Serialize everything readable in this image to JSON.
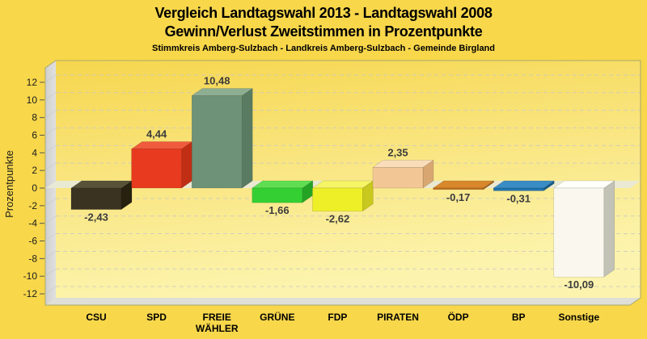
{
  "chart_data": {
    "type": "bar",
    "projection": "3d-oblique-columns",
    "title": "Vergleich Landtagswahl 2013 - Landtagswahl 2008",
    "subtitle": "Gewinn/Verlust Zweitstimmen in Prozentpunkte",
    "caption": "Stimmkreis Amberg-Sulzbach - Landkreis Amberg-Sulzbach - Gemeinde Birgland",
    "ylabel": "Prozentpunkte",
    "xlabel": "",
    "ylim": [
      -13.5,
      13.5
    ],
    "ytick_step": 2,
    "ytick_values": [
      12,
      10,
      8,
      6,
      4,
      2,
      0,
      -2,
      -4,
      -6,
      -8,
      -10,
      -12
    ],
    "grid": "horizontal-dashed",
    "legend": "none",
    "categories": [
      "CSU",
      "SPD",
      "FREIE WÄHLER",
      "GRÜNE",
      "FDP",
      "PIRATEN",
      "ÖDP",
      "BP",
      "Sonstige"
    ],
    "values": [
      -2.43,
      4.44,
      10.48,
      -1.66,
      -2.62,
      2.35,
      -0.17,
      -0.31,
      -10.09
    ],
    "value_labels": [
      "-2,43",
      "4,44",
      "10,48",
      "-1,66",
      "-2,62",
      "2,35",
      "-0,17",
      "-0,31",
      "-10,09"
    ],
    "bars": [
      {
        "party": "CSU",
        "slug": "csu",
        "value": -2.43,
        "label": "-2,43",
        "color": {
          "front": "#3A3322",
          "top": "#575238",
          "side": "#27220F"
        }
      },
      {
        "party": "SPD",
        "slug": "spd",
        "value": 4.44,
        "label": "4,44",
        "color": {
          "front": "#E73A1E",
          "top": "#EF5B3C",
          "side": "#C02E14"
        }
      },
      {
        "party": "FREIE WÄHLER",
        "slug": "freie-waehler",
        "value": 10.48,
        "label": "10,48",
        "color": {
          "front": "#6E9277",
          "top": "#8EAE92",
          "side": "#597B62"
        }
      },
      {
        "party": "GRÜNE",
        "slug": "gruene",
        "value": -1.66,
        "label": "-1,66",
        "color": {
          "front": "#33CF33",
          "top": "#5FDE52",
          "side": "#25A325"
        }
      },
      {
        "party": "FDP",
        "slug": "fdp",
        "value": -2.62,
        "label": "-2,62",
        "color": {
          "front": "#EFEF28",
          "top": "#F5F566",
          "side": "#C8C81E"
        }
      },
      {
        "party": "PIRATEN",
        "slug": "piraten",
        "value": 2.35,
        "label": "2,35",
        "color": {
          "front": "#F3C795",
          "top": "#F9DDBB",
          "side": "#D8A771"
        }
      },
      {
        "party": "ÖDP",
        "slug": "oedp",
        "value": -0.17,
        "label": "-0,17",
        "color": {
          "front": "#C37320",
          "top": "#D8882B",
          "side": "#A05E18"
        }
      },
      {
        "party": "BP",
        "slug": "bp",
        "value": -0.31,
        "label": "-0,31",
        "color": {
          "front": "#1F73AD",
          "top": "#3A8CC4",
          "side": "#175A87"
        }
      },
      {
        "party": "Sonstige",
        "slug": "sonstige",
        "value": -10.09,
        "label": "-10,09",
        "color": {
          "front": "#FAF8EE",
          "top": "#FFFFFA",
          "side": "#C2C2B6"
        }
      }
    ],
    "colors": {
      "page_bg": "#F8D74B",
      "wall_top": "#F6D64E",
      "wall_mid": "#F9E47C",
      "wall_bottom": "#FCF4AE",
      "left_wall_light": "#E0E0E0",
      "left_wall_dark": "#CFCFCF",
      "floor": "#DFDFD8",
      "zero_plane": "#E9E9D6",
      "grid_line": "#C8C8C8",
      "frame_border": "#A9A96B",
      "tick_text": "#1A1A1A",
      "value_text": "#3C3C3C",
      "category_text": "#000000",
      "title_text": "#000000"
    }
  }
}
